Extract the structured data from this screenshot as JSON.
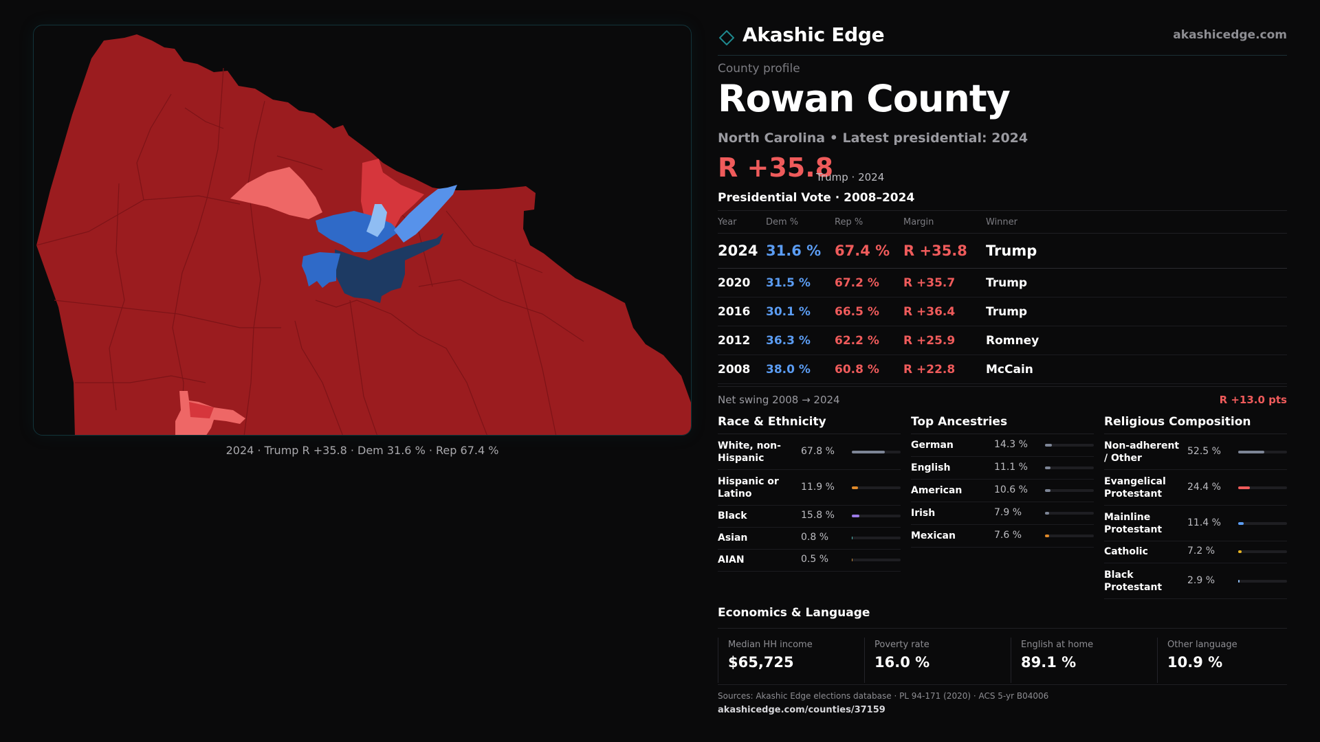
{
  "brand": {
    "name": "Akashic Edge",
    "url": "akashicedge.com"
  },
  "header": {
    "eyebrow": "County profile",
    "title": "Rowan County",
    "subtitle": "North Carolina • Latest presidential: 2024",
    "margin": "R +35.8",
    "margin_note": "Trump · 2024"
  },
  "map": {
    "caption": "2024 · Trump R +35.8 · Dem 31.6 % · Rep 67.4 %",
    "colors": {
      "strong_rep": "#9b1c1f",
      "lean_rep": "#d6363c",
      "tilt_rep": "#ee6766",
      "strong_dem": "#1d3a63",
      "lean_dem": "#2f6ac8",
      "tilt_dem": "#5792ea",
      "light_dem": "#8fbdf3"
    }
  },
  "vote": {
    "title": "Presidential Vote · 2008–2024",
    "headers": {
      "year": "Year",
      "dem": "Dem %",
      "rep": "Rep %",
      "margin": "Margin",
      "winner": "Winner"
    },
    "rows": [
      {
        "year": "2024",
        "dem": "31.6 %",
        "rep": "67.4 %",
        "margin": "R +35.8",
        "winner": "Trump"
      },
      {
        "year": "2020",
        "dem": "31.5 %",
        "rep": "67.2 %",
        "margin": "R +35.7",
        "winner": "Trump"
      },
      {
        "year": "2016",
        "dem": "30.1 %",
        "rep": "66.5 %",
        "margin": "R +36.4",
        "winner": "Trump"
      },
      {
        "year": "2012",
        "dem": "36.3 %",
        "rep": "62.2 %",
        "margin": "R +25.9",
        "winner": "Romney"
      },
      {
        "year": "2008",
        "dem": "38.0 %",
        "rep": "60.8 %",
        "margin": "R +22.8",
        "winner": "McCain"
      }
    ],
    "swing_label": "Net swing 2008 → 2024",
    "swing_value": "R +13.0 pts"
  },
  "demographics": {
    "race": {
      "title": "Race & Ethnicity",
      "items": [
        {
          "label": "White, non-Hispanic",
          "pct": "67.8 %",
          "share": 0.678,
          "color": "#7d8596"
        },
        {
          "label": "Hispanic or Latino",
          "pct": "11.9 %",
          "share": 0.119,
          "color": "#e08a2a"
        },
        {
          "label": "Black",
          "pct": "15.8 %",
          "share": 0.158,
          "color": "#9b7ae6"
        },
        {
          "label": "Asian",
          "pct": "0.8 %",
          "share": 0.008,
          "color": "#4fb8b0"
        },
        {
          "label": "AIAN",
          "pct": "0.5 %",
          "share": 0.005,
          "color": "#c58a3a"
        }
      ]
    },
    "ancestry": {
      "title": "Top Ancestries",
      "items": [
        {
          "label": "German",
          "pct": "14.3 %",
          "share": 0.143,
          "color": "#7d8596"
        },
        {
          "label": "English",
          "pct": "11.1 %",
          "share": 0.111,
          "color": "#7d8596"
        },
        {
          "label": "American",
          "pct": "10.6 %",
          "share": 0.106,
          "color": "#7d8596"
        },
        {
          "label": "Irish",
          "pct": "7.9 %",
          "share": 0.079,
          "color": "#7d8596"
        },
        {
          "label": "Mexican",
          "pct": "7.6 %",
          "share": 0.076,
          "color": "#e08a2a"
        }
      ]
    },
    "religion": {
      "title": "Religious Composition",
      "items": [
        {
          "label": "Non-adherent / Other",
          "pct": "52.5 %",
          "share": 0.525,
          "color": "#7d8596"
        },
        {
          "label": "Evangelical Protestant",
          "pct": "24.4 %",
          "share": 0.244,
          "color": "#ef5b5b"
        },
        {
          "label": "Mainline Protestant",
          "pct": "11.4 %",
          "share": 0.114,
          "color": "#5b9cf2"
        },
        {
          "label": "Catholic",
          "pct": "7.2 %",
          "share": 0.072,
          "color": "#e6b422"
        },
        {
          "label": "Black Protestant",
          "pct": "2.9 %",
          "share": 0.029,
          "color": "#8fbdf3"
        }
      ]
    }
  },
  "economics": {
    "title": "Economics & Language",
    "stats": [
      {
        "label": "Median HH income",
        "value": "$65,725"
      },
      {
        "label": "Poverty rate",
        "value": "16.0 %"
      },
      {
        "label": "English at home",
        "value": "89.1 %"
      },
      {
        "label": "Other language",
        "value": "10.9 %"
      }
    ]
  },
  "footer": {
    "sources": "Sources: Akashic Edge elections database · PL 94-171 (2020) · ACS 5-yr B04006",
    "page_url": "akashicedge.com/counties/37159"
  }
}
